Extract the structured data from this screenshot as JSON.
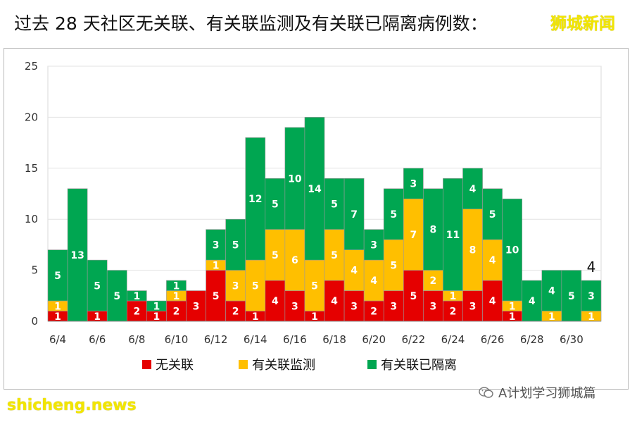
{
  "header": {
    "title": "过去 28 天社区无关联、有关联监测及有关联已隔离病例数：",
    "brand": "狮城新闻"
  },
  "watermark": {
    "site": "shicheng.news",
    "wechat": "A计划学习狮城篇"
  },
  "colors": {
    "unlinked": "#e50000",
    "monitored": "#ffbf00",
    "quarantined": "#00a651"
  },
  "chart_data": {
    "type": "bar",
    "stacked": true,
    "categories": [
      "6/4",
      "6/5",
      "6/6",
      "6/7",
      "6/8",
      "6/9",
      "6/10",
      "6/11",
      "6/12",
      "6/13",
      "6/14",
      "6/15",
      "6/16",
      "6/17",
      "6/18",
      "6/19",
      "6/20",
      "6/21",
      "6/22",
      "6/23",
      "6/24",
      "6/25",
      "6/26",
      "6/27",
      "6/28",
      "6/29",
      "6/30",
      "7/1"
    ],
    "x_tick_labels": [
      "6/4",
      "6/6",
      "6/8",
      "6/10",
      "6/12",
      "6/14",
      "6/16",
      "6/18",
      "6/20",
      "6/22",
      "6/24",
      "6/26",
      "6/28",
      "6/30"
    ],
    "y_ticks": [
      0,
      5,
      10,
      15,
      20,
      25
    ],
    "ylim": [
      0,
      25
    ],
    "series": [
      {
        "name": "无关联",
        "values": [
          1,
          0,
          1,
          0,
          2,
          1,
          2,
          3,
          5,
          2,
          1,
          4,
          3,
          1,
          4,
          3,
          2,
          3,
          5,
          3,
          2,
          3,
          4,
          1,
          0,
          0,
          0,
          0
        ]
      },
      {
        "name": "有关联监测",
        "values": [
          1,
          0,
          0,
          0,
          0,
          0,
          1,
          0,
          1,
          3,
          5,
          5,
          6,
          5,
          5,
          4,
          4,
          5,
          7,
          2,
          1,
          8,
          4,
          1,
          0,
          1,
          0,
          1
        ]
      },
      {
        "name": "有关联已隔离",
        "values": [
          5,
          13,
          5,
          5,
          1,
          1,
          1,
          0,
          3,
          5,
          12,
          5,
          10,
          14,
          5,
          7,
          3,
          5,
          3,
          8,
          11,
          4,
          5,
          10,
          4,
          4,
          5,
          3
        ]
      }
    ],
    "annotations": [
      {
        "category": "7/1",
        "text": "4"
      }
    ],
    "legend_position": "bottom",
    "grid": true
  }
}
